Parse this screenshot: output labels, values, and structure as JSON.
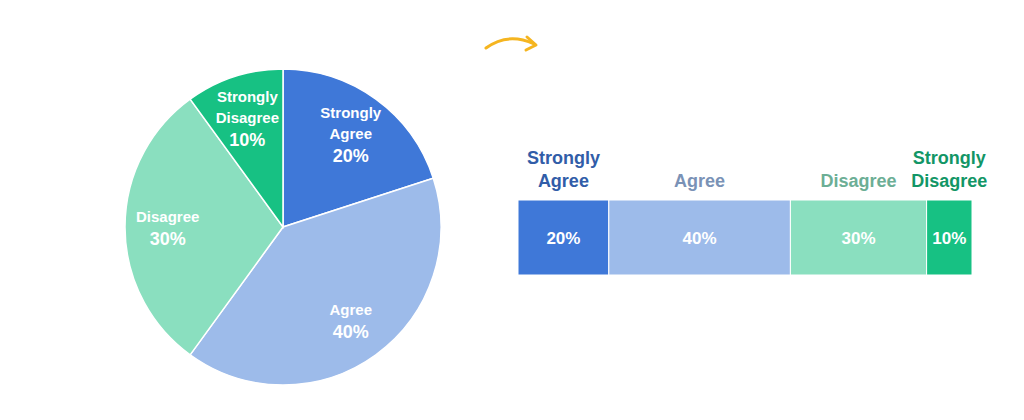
{
  "chart_data": [
    {
      "type": "pie",
      "categories": [
        "Strongly Agree",
        "Agree",
        "Disagree",
        "Strongly Disagree"
      ],
      "values": [
        20,
        40,
        30,
        10
      ],
      "value_labels": [
        "20%",
        "40%",
        "30%",
        "10%"
      ],
      "colors": [
        "#3f78d8",
        "#9dbbea",
        "#8adfbf",
        "#17c183"
      ],
      "data_labels": true
    },
    {
      "type": "bar",
      "orientation": "horizontal",
      "stacked": true,
      "data_labels": true,
      "tick_labels": false,
      "categories": [
        null
      ],
      "xlim": [
        0,
        100
      ],
      "series": [
        {
          "name": "Strongly Agree",
          "color": "#3f78d8",
          "values": [
            20
          ],
          "value_labels": [
            "20%"
          ]
        },
        {
          "name": "Agree",
          "color": "#9dbbea",
          "values": [
            40
          ],
          "value_labels": [
            "40%"
          ]
        },
        {
          "name": "Disagree",
          "color": "#8adfbf",
          "values": [
            30
          ],
          "value_labels": [
            "30%"
          ]
        },
        {
          "name": "Strongly Disagree",
          "color": "#17c183",
          "values": [
            10
          ],
          "value_labels": [
            "10%"
          ]
        }
      ]
    }
  ]
}
